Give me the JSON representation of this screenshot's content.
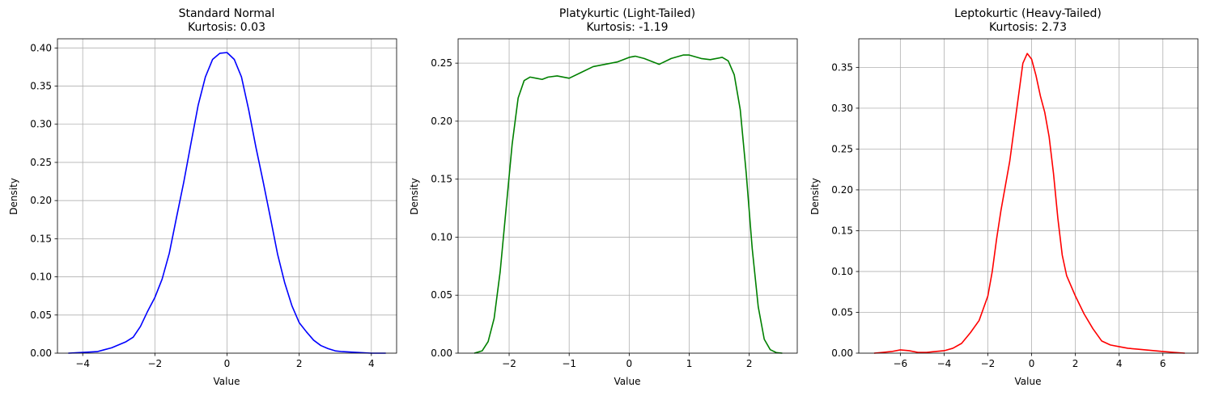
{
  "chart_data": [
    {
      "type": "line",
      "title": "Standard Normal",
      "subtitle": "Kurtosis: 0.03",
      "xlabel": "Value",
      "ylabel": "Density",
      "xlim": [
        -4.7,
        4.7
      ],
      "ylim": [
        0,
        0.412
      ],
      "xticks": [
        -4,
        -2,
        0,
        2,
        4
      ],
      "yticks": [
        0.0,
        0.05,
        0.1,
        0.15,
        0.2,
        0.25,
        0.3,
        0.35,
        0.4
      ],
      "ytick_labels": [
        "0.00",
        "0.05",
        "0.10",
        "0.15",
        "0.20",
        "0.25",
        "0.30",
        "0.35",
        "0.40"
      ],
      "grid": true,
      "color": "#0000ff",
      "series": [
        {
          "x": [
            -4.4,
            -4.0,
            -3.6,
            -3.2,
            -3.0,
            -2.8,
            -2.6,
            -2.4,
            -2.2,
            -2.0,
            -1.8,
            -1.6,
            -1.4,
            -1.2,
            -1.0,
            -0.8,
            -0.6,
            -0.4,
            -0.2,
            0.0,
            0.2,
            0.4,
            0.6,
            0.8,
            1.0,
            1.2,
            1.4,
            1.6,
            1.8,
            2.0,
            2.2,
            2.4,
            2.6,
            2.8,
            3.0,
            3.2,
            3.6,
            4.0,
            4.4
          ],
          "y": [
            0.0,
            0.001,
            0.002,
            0.007,
            0.011,
            0.015,
            0.021,
            0.035,
            0.055,
            0.073,
            0.097,
            0.131,
            0.178,
            0.224,
            0.275,
            0.325,
            0.362,
            0.385,
            0.393,
            0.394,
            0.385,
            0.362,
            0.319,
            0.27,
            0.225,
            0.178,
            0.13,
            0.092,
            0.062,
            0.04,
            0.028,
            0.017,
            0.01,
            0.006,
            0.003,
            0.002,
            0.001,
            0.0,
            0.0
          ]
        }
      ]
    },
    {
      "type": "line",
      "title": "Platykurtic (Light-Tailed)",
      "subtitle": "Kurtosis: -1.19",
      "xlabel": "Value",
      "ylabel": "Density",
      "xlim": [
        -2.85,
        2.8
      ],
      "ylim": [
        0,
        0.271
      ],
      "xticks": [
        -2,
        -1,
        0,
        1,
        2
      ],
      "yticks": [
        0.0,
        0.05,
        0.1,
        0.15,
        0.2,
        0.25
      ],
      "ytick_labels": [
        "0.00",
        "0.05",
        "0.10",
        "0.15",
        "0.20",
        "0.25"
      ],
      "grid": true,
      "color": "#008000",
      "series": [
        {
          "x": [
            -2.58,
            -2.45,
            -2.35,
            -2.25,
            -2.15,
            -2.05,
            -1.95,
            -1.85,
            -1.75,
            -1.65,
            -1.55,
            -1.45,
            -1.35,
            -1.2,
            -1.0,
            -0.8,
            -0.6,
            -0.4,
            -0.2,
            0.0,
            0.1,
            0.25,
            0.5,
            0.7,
            0.9,
            1.0,
            1.2,
            1.35,
            1.55,
            1.65,
            1.75,
            1.85,
            1.95,
            2.05,
            2.15,
            2.25,
            2.35,
            2.45,
            2.55
          ],
          "y": [
            0.0,
            0.002,
            0.01,
            0.03,
            0.07,
            0.125,
            0.18,
            0.22,
            0.235,
            0.238,
            0.237,
            0.236,
            0.238,
            0.239,
            0.237,
            0.242,
            0.247,
            0.249,
            0.251,
            0.255,
            0.256,
            0.254,
            0.249,
            0.254,
            0.257,
            0.257,
            0.254,
            0.253,
            0.255,
            0.252,
            0.24,
            0.21,
            0.155,
            0.09,
            0.04,
            0.012,
            0.003,
            0.0005,
            0.0
          ]
        }
      ]
    },
    {
      "type": "line",
      "title": "Leptokurtic (Heavy-Tailed)",
      "subtitle": "Kurtosis: 2.73",
      "xlabel": "Value",
      "ylabel": "Density",
      "xlim": [
        -7.9,
        7.6
      ],
      "ylim": [
        0,
        0.385
      ],
      "xticks": [
        -6,
        -4,
        -2,
        0,
        2,
        4,
        6
      ],
      "yticks": [
        0.0,
        0.05,
        0.1,
        0.15,
        0.2,
        0.25,
        0.3,
        0.35
      ],
      "ytick_labels": [
        "0.00",
        "0.05",
        "0.10",
        "0.15",
        "0.20",
        "0.25",
        "0.30",
        "0.35"
      ],
      "grid": true,
      "color": "#ff0000",
      "series": [
        {
          "x": [
            -7.2,
            -6.8,
            -6.4,
            -6.0,
            -5.6,
            -5.2,
            -4.8,
            -4.4,
            -4.0,
            -3.6,
            -3.2,
            -2.8,
            -2.4,
            -2.0,
            -1.8,
            -1.6,
            -1.4,
            -1.2,
            -1.0,
            -0.8,
            -0.6,
            -0.4,
            -0.2,
            0.0,
            0.2,
            0.4,
            0.6,
            0.8,
            1.0,
            1.2,
            1.4,
            1.6,
            2.0,
            2.4,
            2.8,
            3.2,
            3.6,
            4.0,
            4.4,
            4.8,
            5.2,
            5.6,
            6.0,
            6.5,
            7.0
          ],
          "y": [
            0.0,
            0.001,
            0.002,
            0.004,
            0.003,
            0.001,
            0.001,
            0.002,
            0.003,
            0.006,
            0.012,
            0.025,
            0.04,
            0.07,
            0.1,
            0.14,
            0.175,
            0.205,
            0.235,
            0.275,
            0.315,
            0.355,
            0.367,
            0.36,
            0.34,
            0.315,
            0.295,
            0.265,
            0.22,
            0.165,
            0.12,
            0.095,
            0.07,
            0.048,
            0.03,
            0.015,
            0.01,
            0.008,
            0.006,
            0.005,
            0.004,
            0.003,
            0.002,
            0.001,
            0.0
          ]
        }
      ]
    }
  ]
}
